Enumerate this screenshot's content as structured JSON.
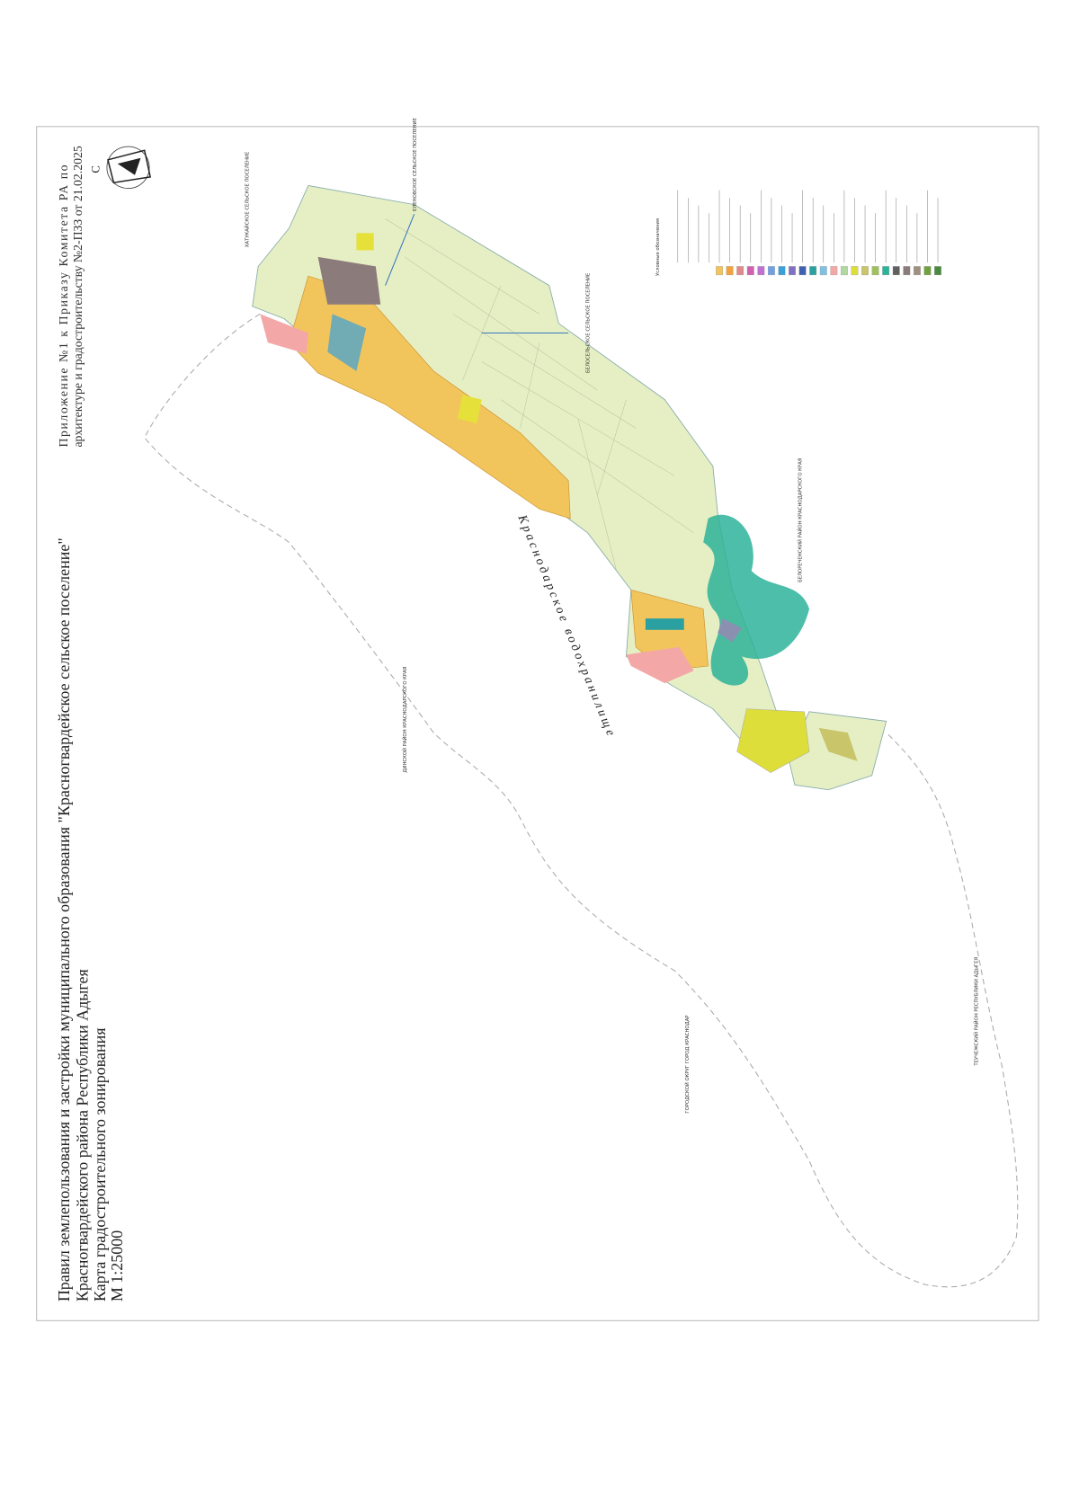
{
  "header": {
    "title_lines": [
      "Правил землепользования и застройки муниципального образования \"Красногвардейское сельское поселение\"",
      "Красногвардейского района Республики Адыгея",
      "Карта градостроительного зонирования",
      "М 1:25000"
    ],
    "annex_lines": [
      "Приложение №1 к Приказу Комитета РА по",
      "архитектуре и градостроительству №2-ПЗЗ от 21.02.2025"
    ],
    "north": "С"
  },
  "map": {
    "reservoir": "Краснодарское водохранилище",
    "neighbors": [
      "ХАТУКАЙСКОЕ СЕЛЬСКОЕ ПОСЕЛЕНИЕ",
      "ЕЛЕНОВСКОЕ СЕЛЬСКОЕ ПОСЕЛЕНИЕ",
      "БЕЛОСЕЛЬСКОЕ СЕЛЬСКОЕ ПОСЕЛЕНИЕ",
      "БЕЛОРЕЧЕНСКИЙ РАЙОН КРАСНОДАРСКОГО КРАЯ",
      "ДИНСКОЙ РАЙОН КРАСНОДАРСКОГО КРАЯ",
      "ГОРОДСКОЙ ОКРУГ ГОРОД КРАСНОДАР",
      "ТЕУЧЕЖСКИЙ РАЙОН РЕСПУБЛИКИ АДЫГЕЯ"
    ],
    "legend_title": "Условные обозначения"
  }
}
